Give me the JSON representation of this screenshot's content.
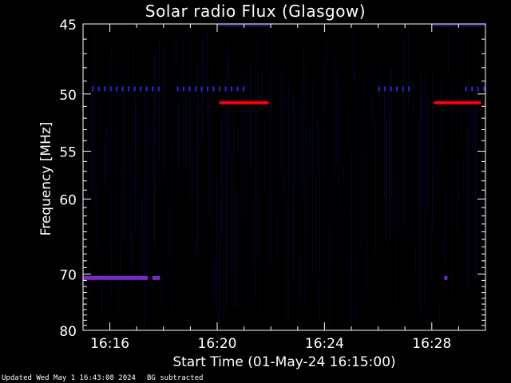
{
  "chart_data": {
    "type": "heatmap",
    "title": "Solar radio Flux (Glasgow)",
    "xlabel": "Start Time (01-May-24 16:15:00)",
    "ylabel": "Frequency [MHz]",
    "x_unit": "time (HH:MM)",
    "xlim": [
      "16:15:00",
      "16:30:00"
    ],
    "x_ticks": [
      "16:16",
      "16:20",
      "16:24",
      "16:28"
    ],
    "y_scale": "reciprocal",
    "ylim": [
      45,
      80
    ],
    "y_ticks": [
      45,
      50,
      55,
      60,
      70,
      80
    ],
    "background_color": "#000000",
    "noise_color": "#0a0a40",
    "features": [
      {
        "kind": "strong",
        "freq_mhz": 50.7,
        "time_start": "16:20:05",
        "time_end": "16:21:55",
        "color": "#ff0000"
      },
      {
        "kind": "strong",
        "freq_mhz": 50.7,
        "time_start": "16:28:05",
        "time_end": "16:29:50",
        "color": "#ff0000"
      },
      {
        "kind": "moderate",
        "freq_mhz": 70.6,
        "time_start": "16:15:00",
        "time_end": "16:17:25",
        "color": "#7a28c8"
      },
      {
        "kind": "moderate",
        "freq_mhz": 70.6,
        "time_start": "16:17:35",
        "time_end": "16:17:52",
        "color": "#7a28c8"
      },
      {
        "kind": "moderate",
        "freq_mhz": 70.6,
        "time_start": "16:28:28",
        "time_end": "16:28:35",
        "color": "#7a28c8"
      },
      {
        "kind": "dashed",
        "freq_mhz": 49.6,
        "time_start": "16:15:20",
        "time_end": "16:17:50",
        "color": "#2a2ad0"
      },
      {
        "kind": "dashed",
        "freq_mhz": 49.6,
        "time_start": "16:18:30",
        "time_end": "16:21:05",
        "color": "#2a2ad0"
      },
      {
        "kind": "dashed",
        "freq_mhz": 49.6,
        "time_start": "16:26:00",
        "time_end": "16:27:15",
        "color": "#2a2ad0"
      },
      {
        "kind": "dashed",
        "freq_mhz": 49.6,
        "time_start": "16:29:15",
        "time_end": "16:30:00",
        "color": "#2a2ad0"
      },
      {
        "kind": "weak",
        "freq_mhz": 45.1,
        "time_start": "16:20:00",
        "time_end": "16:22:00",
        "color": "#14145a"
      },
      {
        "kind": "weak",
        "freq_mhz": 45.1,
        "time_start": "16:28:00",
        "time_end": "16:30:00",
        "color": "#14145a"
      }
    ]
  },
  "footer": {
    "updated": "Updated Wed May  1 16:43:08 2024",
    "note": "BG subtracted"
  }
}
